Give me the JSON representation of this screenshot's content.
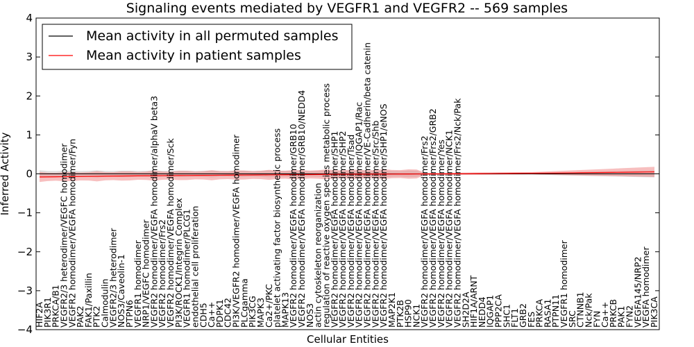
{
  "chart_data": {
    "type": "line",
    "title": "Signaling events mediated by VEGFR1 and VEGFR2 -- 569 samples",
    "xlabel": "Cellular Entities",
    "ylabel": "Inferred Activity",
    "ylim": [
      -4,
      4
    ],
    "yticks": [
      -4,
      -3,
      -2,
      -1,
      0,
      1,
      2,
      3,
      4
    ],
    "legend_position": "top-left",
    "colors": {
      "permuted_line": "#000000",
      "patient_line": "#ff0000",
      "patient_band": "#f08080",
      "permuted_band": "#c8c8c8",
      "zero_line": "#000000"
    },
    "series": [
      {
        "name": "Mean activity in all permuted samples",
        "color": "#000000",
        "values": [
          0,
          0,
          0,
          0
        ]
      },
      {
        "name": "Mean activity in patient samples",
        "color": "#ff0000",
        "values": [
          -0.08,
          -0.05,
          -0.03,
          -0.01,
          0.0,
          0.02,
          0.05
        ]
      }
    ],
    "entities": [
      "HIF2A",
      "PIK3R1",
      "PRKCA/B1",
      "VEGFR2/3 heterodimer/VEGFC homodimer",
      "VEGFR2 homodimer/VEGFA homodimer/Fyn",
      "PAK2",
      "FAK1/Paxillin",
      "PTK2",
      "Calmodulin",
      "VEGFR2/3 heterodimer",
      "NOS3/Caveolin-1",
      "PTPN6",
      "VEGFR1 homodimer",
      "NRP1/VEGFC homodimer",
      "VEGFR2 homodimer/VEGFA homodimer/alphaV beta3",
      "VEGFR2 homodimer/Frs2",
      "VEGFR2 homodimer/VEGFA homodimer/Sck",
      "PI3K/ROCK1/Integrin Complex",
      "VEGFR1 homodimer/PLCG1",
      "endothelial cell proliferation",
      "CDH5",
      "Ca++",
      "PDPK1",
      "CDC42",
      "PI3K/VEGFR2 homodimer/VEGFA homodimer",
      "PLCgamma",
      "PIK3CG",
      "MAPK3",
      "Ca2+/PKC",
      "platelet activating factor biosynthetic process",
      "MAPK13",
      "VEGFR2 homodimer/VEGFA homodimer/GRB10",
      "VEGFR2 homodimer/VEGFA homodimer/GRB10/NEDD4",
      "NOS3",
      "actin cytoskeleton reorganization",
      "regulation of reactive oxygen species metabolic process",
      "VEGFR2 homodimer/VEGFA homodimer/SHP1",
      "VEGFR2 homodimer/VEGFA homodimer/SHP2",
      "VEGFR2 homodimer/VEGFA homodimer/Tsad",
      "VEGFR2 homodimer/VEGFA homodimer/IQGAP1/Rac",
      "VEGFR2 homodimer/VEGFA homodimer/VE-Cadherin/beta catenin",
      "VEGFR2 homodimer/VEGFA homodimer/Src/Shb",
      "VEGFR2 homodimer/VEGFA homodimer/SHP1/eNOS",
      "MAP2K1",
      "PTK2B",
      "HSP90",
      "NCK1",
      "VEGFR2 homodimer/VEGFA homodimer/Frs2",
      "VEGFR2 homodimer/VEGFA homodimer/Frs2/GRB2",
      "VEGFR2 homodimer/VEGFA homodimer/Yes",
      "VEGFR2 homodimer/VEGFA homodimer/NCK1",
      "VEGFR2 homodimer/VEGFA homodimer/Frs2/Nck/Pak",
      "SH2D2A",
      "HIF1A/ARNT",
      "NEDD4",
      "IQGAP1",
      "PPP2CA",
      "SHC1",
      "FLT1",
      "GRB2",
      "FES",
      "PRKCA",
      "RASA1",
      "PTPN11",
      "VEGFR1 homodimer",
      "SRC",
      "CTNNB1",
      "Nck/Pak",
      "FYN",
      "Ca++",
      "PRKCB",
      "PAK1",
      "FYN2",
      "VEGFA145/NRP2",
      "VEGFA homodimer",
      "PIK3CA"
    ]
  }
}
